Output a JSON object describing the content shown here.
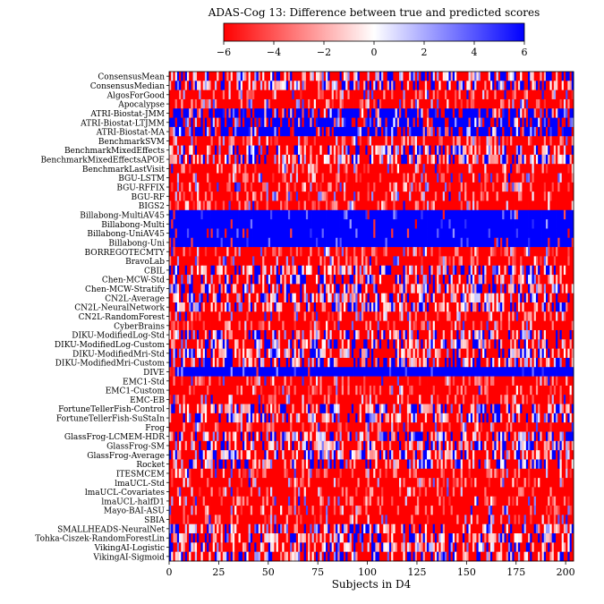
{
  "chart_data": {
    "type": "heatmap",
    "title": "ADAS-Cog 13: Difference between true and predicted scores",
    "xlabel": "Subjects in D4",
    "ylabel": "",
    "x_range": [
      0,
      204
    ],
    "x_ticks": [
      0,
      25,
      50,
      75,
      100,
      125,
      150,
      175,
      200
    ],
    "colorbar": {
      "range": [
        -6,
        6
      ],
      "ticks": [
        "−6",
        "−4",
        "−2",
        "0",
        "2",
        "4",
        "6"
      ],
      "colors": {
        "low": "#ff0000",
        "mid": "#ffffff",
        "high": "#0000ff"
      }
    },
    "rows": [
      {
        "name": "ConsensusMean",
        "pattern": "mixed"
      },
      {
        "name": "ConsensusMedian",
        "pattern": "mixed"
      },
      {
        "name": "AlgosForGood",
        "pattern": "red"
      },
      {
        "name": "Apocalypse",
        "pattern": "red"
      },
      {
        "name": "ATRI-Biostat-JMM",
        "pattern": "blue-mixed"
      },
      {
        "name": "ATRI-Biostat-LTJMM",
        "pattern": "blue-mixed"
      },
      {
        "name": "ATRI-Biostat-MA",
        "pattern": "blue-mixed"
      },
      {
        "name": "BenchmarkSVM",
        "pattern": "red"
      },
      {
        "name": "BenchmarkMixedEffects",
        "pattern": "mixed"
      },
      {
        "name": "BenchmarkMixedEffectsAPOE",
        "pattern": "mixed"
      },
      {
        "name": "BenchmarkLastVisit",
        "pattern": "red"
      },
      {
        "name": "BGU-LSTM",
        "pattern": "red"
      },
      {
        "name": "BGU-RFFIX",
        "pattern": "red"
      },
      {
        "name": "BGU-RF",
        "pattern": "red"
      },
      {
        "name": "BIGS2",
        "pattern": "red"
      },
      {
        "name": "Billabong-MultiAV45",
        "pattern": "blue"
      },
      {
        "name": "Billabong-Multi",
        "pattern": "blue"
      },
      {
        "name": "Billabong-UniAV45",
        "pattern": "blue"
      },
      {
        "name": "Billabong-Uni",
        "pattern": "blue"
      },
      {
        "name": "BORREGOTECMTY",
        "pattern": "red"
      },
      {
        "name": "BravoLab",
        "pattern": "red"
      },
      {
        "name": "CBIL",
        "pattern": "mixed"
      },
      {
        "name": "Chen-MCW-Std",
        "pattern": "mixed"
      },
      {
        "name": "Chen-MCW-Stratify",
        "pattern": "mixed"
      },
      {
        "name": "CN2L-Average",
        "pattern": "mixed"
      },
      {
        "name": "CN2L-NeuralNetwork",
        "pattern": "mixed"
      },
      {
        "name": "CN2L-RandomForest",
        "pattern": "red"
      },
      {
        "name": "CyberBrains",
        "pattern": "red"
      },
      {
        "name": "DIKU-ModifiedLog-Std",
        "pattern": "mixed"
      },
      {
        "name": "DIKU-ModifiedLog-Custom",
        "pattern": "mixed"
      },
      {
        "name": "DIKU-ModifiedMri-Std",
        "pattern": "mixed"
      },
      {
        "name": "DIKU-ModifiedMri-Custom",
        "pattern": "mixed"
      },
      {
        "name": "DIVE",
        "pattern": "blue"
      },
      {
        "name": "EMC1-Std",
        "pattern": "red"
      },
      {
        "name": "EMC1-Custom",
        "pattern": "red"
      },
      {
        "name": "EMC-EB",
        "pattern": "red"
      },
      {
        "name": "FortuneTellerFish-Control",
        "pattern": "mixed"
      },
      {
        "name": "FortuneTellerFish-SuStaIn",
        "pattern": "mixed"
      },
      {
        "name": "Frog",
        "pattern": "red"
      },
      {
        "name": "GlassFrog-LCMEM-HDR",
        "pattern": "mixed"
      },
      {
        "name": "GlassFrog-SM",
        "pattern": "mixed"
      },
      {
        "name": "GlassFrog-Average",
        "pattern": "mixed"
      },
      {
        "name": "Rocket",
        "pattern": "mixed"
      },
      {
        "name": "ITESMCEM",
        "pattern": "red"
      },
      {
        "name": "lmaUCL-Std",
        "pattern": "red"
      },
      {
        "name": "lmaUCL-Covariates",
        "pattern": "red"
      },
      {
        "name": "lmaUCL-halfD1",
        "pattern": "red"
      },
      {
        "name": "Mayo-BAI-ASU",
        "pattern": "red"
      },
      {
        "name": "SBIA",
        "pattern": "red"
      },
      {
        "name": "SMALLHEADS-NeuralNet",
        "pattern": "mixed"
      },
      {
        "name": "Tohka-Ciszek-RandomForestLin",
        "pattern": "mixed"
      },
      {
        "name": "VikingAI-Logistic",
        "pattern": "mixed"
      },
      {
        "name": "VikingAI-Sigmoid",
        "pattern": "mixed"
      }
    ]
  }
}
